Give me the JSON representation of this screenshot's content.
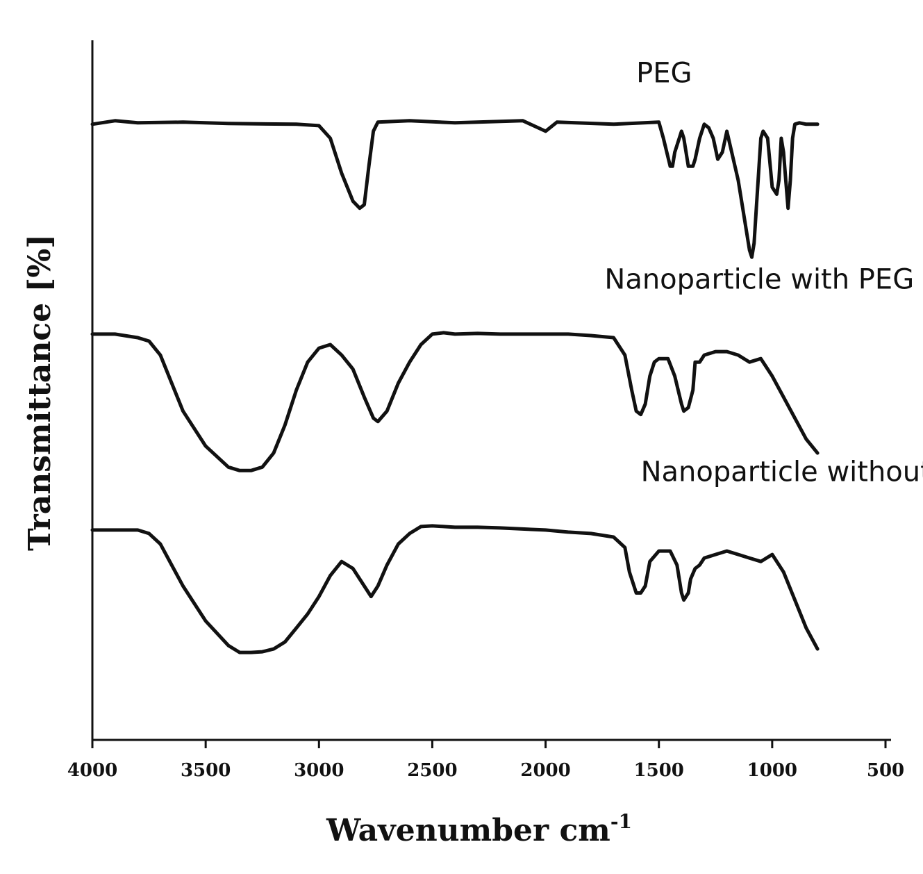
{
  "chart_data": {
    "type": "line",
    "title": "",
    "xlabel": "Wavenumber cm",
    "xlabel_superscript": "-1",
    "ylabel": "Transmittance [%]",
    "xlim": [
      4000,
      500
    ],
    "ylim": [
      0,
      100
    ],
    "xticks": [
      4000,
      3500,
      3000,
      2500,
      2000,
      1500,
      1000,
      500
    ],
    "colors": {
      "line": "#111111",
      "axis": "#111111"
    },
    "series": [
      {
        "name": "PEG",
        "x": [
          4000,
          3900,
          3800,
          3600,
          3400,
          3100,
          3000,
          2950,
          2900,
          2850,
          2820,
          2800,
          2780,
          2760,
          2740,
          2600,
          2400,
          2100,
          2000,
          1950,
          1700,
          1500,
          1480,
          1450,
          1440,
          1430,
          1400,
          1390,
          1370,
          1350,
          1340,
          1320,
          1300,
          1280,
          1260,
          1240,
          1220,
          1200,
          1150,
          1120,
          1100,
          1090,
          1080,
          1070,
          1050,
          1040,
          1020,
          1000,
          980,
          970,
          960,
          950,
          940,
          930,
          920,
          910,
          900,
          880,
          850,
          800
        ],
        "y": [
          88,
          88.5,
          88.2,
          88.3,
          88.1,
          88.0,
          87.8,
          86,
          81,
          77,
          76,
          76.5,
          82,
          87,
          88.3,
          88.5,
          88.2,
          88.5,
          87,
          88.3,
          88.0,
          88.3,
          86,
          82,
          82,
          84,
          87,
          86,
          82,
          82,
          83,
          86,
          88,
          87.5,
          86,
          83,
          84,
          87,
          80,
          74,
          70,
          69,
          71,
          76,
          86,
          87,
          86,
          79,
          78,
          80,
          86,
          84,
          80,
          76,
          80,
          86,
          88,
          88.2,
          88.0,
          88.0
        ],
        "label_x": 1600,
        "label_y": 94
      },
      {
        "name": "Nanoparticle with PEG",
        "x": [
          4000,
          3900,
          3800,
          3750,
          3700,
          3650,
          3600,
          3500,
          3400,
          3350,
          3300,
          3250,
          3200,
          3150,
          3100,
          3050,
          3000,
          2950,
          2900,
          2850,
          2800,
          2760,
          2740,
          2700,
          2650,
          2600,
          2550,
          2500,
          2450,
          2400,
          2300,
          2200,
          2000,
          1900,
          1800,
          1700,
          1650,
          1620,
          1600,
          1580,
          1560,
          1540,
          1520,
          1500,
          1460,
          1430,
          1400,
          1390,
          1370,
          1350,
          1340,
          1320,
          1300,
          1250,
          1200,
          1150,
          1100,
          1050,
          1000,
          950,
          900,
          850,
          800
        ],
        "y": [
          58,
          58,
          57.5,
          57,
          55,
          51,
          47,
          42,
          39,
          38.5,
          38.5,
          39,
          41,
          45,
          50,
          54,
          56,
          56.5,
          55,
          53,
          49,
          46,
          45.5,
          47,
          51,
          54,
          56.5,
          58,
          58.2,
          58.0,
          58.1,
          58.0,
          58.0,
          58.0,
          57.8,
          57.5,
          55,
          50,
          47,
          46.5,
          48,
          52,
          54,
          54.5,
          54.5,
          52,
          48,
          47,
          47.5,
          50,
          54,
          54,
          55,
          55.5,
          55.5,
          55,
          54,
          54.5,
          52,
          49,
          46,
          43,
          41
        ],
        "label_x": 1740,
        "label_y": 64.5
      },
      {
        "name": "Nanoparticle without PEG",
        "x": [
          4000,
          3900,
          3800,
          3750,
          3700,
          3650,
          3600,
          3500,
          3400,
          3350,
          3300,
          3250,
          3200,
          3150,
          3100,
          3050,
          3000,
          2950,
          2900,
          2850,
          2800,
          2770,
          2740,
          2700,
          2650,
          2600,
          2550,
          2500,
          2400,
          2300,
          2200,
          2000,
          1900,
          1800,
          1700,
          1650,
          1630,
          1600,
          1580,
          1560,
          1540,
          1500,
          1450,
          1420,
          1400,
          1390,
          1370,
          1360,
          1340,
          1320,
          1300,
          1250,
          1200,
          1150,
          1100,
          1050,
          1000,
          950,
          900,
          850,
          800
        ],
        "y": [
          30,
          30,
          30,
          29.5,
          28,
          25,
          22,
          17,
          13.5,
          12.5,
          12.5,
          12.6,
          13,
          14,
          16,
          18,
          20.5,
          23.5,
          25.5,
          24.5,
          22,
          20.5,
          22,
          25,
          28,
          29.5,
          30.5,
          30.6,
          30.4,
          30.4,
          30.3,
          30.0,
          29.7,
          29.5,
          29.0,
          27.5,
          24,
          21,
          21,
          22,
          25.5,
          27,
          27,
          25,
          21,
          20,
          21,
          23,
          24.5,
          25,
          26,
          26.5,
          27,
          26.5,
          26,
          25.5,
          26.5,
          24,
          20,
          16,
          13
        ],
        "label_x": 1580,
        "label_y": 37
      }
    ]
  }
}
